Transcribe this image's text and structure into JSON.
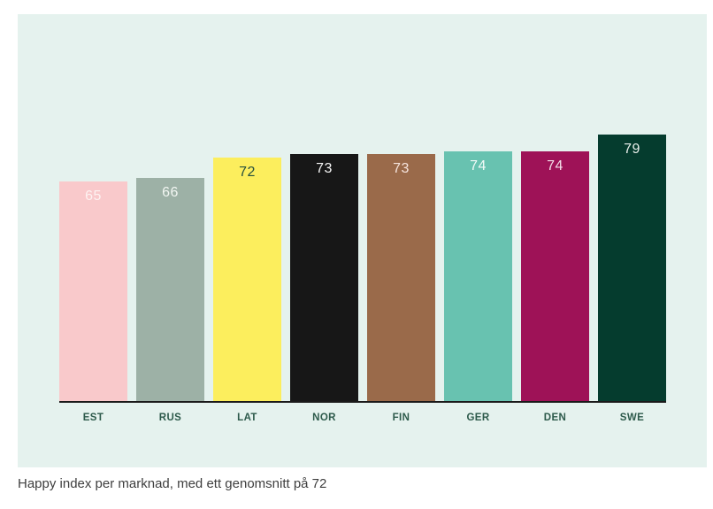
{
  "caption": "Happy index per marknad, med ett genomsnitt på 72",
  "panel": {
    "background": "#e5f2ee",
    "axis_line_color": "#1a1a1a",
    "tick_label_color": "#2d5a4b",
    "caption_color": "#3e3e3e"
  },
  "chart_data": {
    "type": "bar",
    "title": "Happy index per marknad, med ett genomsnitt på 72",
    "categories": [
      "EST",
      "RUS",
      "LAT",
      "NOR",
      "FIN",
      "GER",
      "DEN",
      "SWE"
    ],
    "values": [
      65,
      66,
      72,
      73,
      73,
      74,
      74,
      79
    ],
    "average": 72,
    "xlabel": "",
    "ylabel": "",
    "ylim": [
      0,
      119
    ],
    "grid": false,
    "legend": false,
    "value_labels_shown": true,
    "bar_colors": [
      "#f9c9cb",
      "#9db1a6",
      "#fcee5d",
      "#171717",
      "#9a6a4a",
      "#68c2b0",
      "#9e1257",
      "#053c2e"
    ],
    "value_label_colors": [
      "#fdf2f1",
      "#f2f6f2",
      "#26503e",
      "#f5f5f5",
      "#f6e4dd",
      "#f2faf7",
      "#f3dde8",
      "#e9efeb"
    ]
  }
}
